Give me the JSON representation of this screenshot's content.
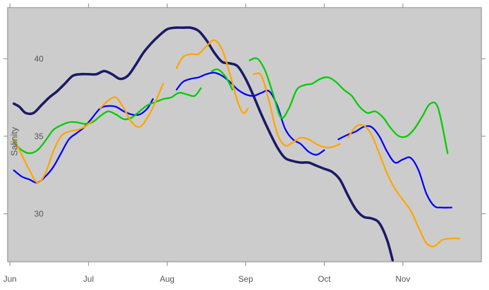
{
  "chart_data": {
    "type": "line",
    "title": "",
    "xlabel": "",
    "ylabel": "Salinity",
    "x_ticks": [
      "Jun",
      "Jul",
      "Aug",
      "Sep",
      "Oct",
      "Nov"
    ],
    "xlim": [
      -0.03,
      6.0
    ],
    "ylim": [
      26.9,
      43.3
    ],
    "y_ticks": [
      30,
      35,
      40
    ],
    "grid": false,
    "legend": "none",
    "background": "#cccccc",
    "series": [
      {
        "color": "#1a1a66",
        "segments": [
          [
            [
              0.05,
              37.1
            ],
            [
              0.12,
              36.9
            ],
            [
              0.2,
              36.5
            ],
            [
              0.3,
              36.5
            ],
            [
              0.4,
              37.0
            ],
            [
              0.5,
              37.5
            ],
            [
              0.6,
              37.9
            ],
            [
              0.7,
              38.4
            ],
            [
              0.8,
              38.9
            ],
            [
              0.9,
              39.0
            ],
            [
              1.0,
              39.0
            ],
            [
              1.1,
              39.0
            ],
            [
              1.2,
              39.2
            ],
            [
              1.3,
              39.0
            ],
            [
              1.4,
              38.7
            ],
            [
              1.5,
              38.9
            ],
            [
              1.6,
              39.6
            ],
            [
              1.7,
              40.4
            ],
            [
              1.8,
              41.0
            ],
            [
              1.9,
              41.5
            ],
            [
              2.0,
              41.9
            ],
            [
              2.1,
              42.0
            ],
            [
              2.2,
              42.0
            ],
            [
              2.3,
              42.0
            ],
            [
              2.4,
              41.8
            ],
            [
              2.5,
              41.2
            ],
            [
              2.6,
              40.4
            ],
            [
              2.7,
              39.8
            ],
            [
              2.8,
              39.7
            ],
            [
              2.9,
              39.5
            ],
            [
              3.0,
              38.7
            ],
            [
              3.1,
              37.6
            ],
            [
              3.2,
              36.4
            ],
            [
              3.3,
              35.3
            ],
            [
              3.4,
              34.3
            ],
            [
              3.5,
              33.6
            ],
            [
              3.6,
              33.4
            ],
            [
              3.7,
              33.3
            ],
            [
              3.8,
              33.3
            ],
            [
              3.9,
              33.1
            ],
            [
              4.0,
              32.9
            ],
            [
              4.1,
              32.7
            ],
            [
              4.2,
              32.2
            ],
            [
              4.3,
              31.2
            ],
            [
              4.4,
              30.3
            ],
            [
              4.5,
              29.8
            ],
            [
              4.6,
              29.7
            ],
            [
              4.7,
              29.4
            ],
            [
              4.8,
              28.3
            ],
            [
              4.87,
              27.0
            ]
          ]
        ]
      },
      {
        "color": "#0000ff",
        "segments": [
          [
            [
              0.05,
              32.8
            ],
            [
              0.15,
              32.4
            ],
            [
              0.25,
              32.2
            ],
            [
              0.35,
              32.0
            ],
            [
              0.45,
              32.4
            ],
            [
              0.55,
              33.0
            ],
            [
              0.65,
              33.9
            ],
            [
              0.75,
              34.8
            ],
            [
              0.85,
              35.2
            ],
            [
              0.95,
              35.6
            ],
            [
              1.05,
              36.2
            ],
            [
              1.15,
              36.8
            ],
            [
              1.25,
              36.95
            ],
            [
              1.35,
              36.9
            ],
            [
              1.45,
              36.6
            ],
            [
              1.55,
              36.4
            ],
            [
              1.65,
              36.4
            ],
            [
              1.75,
              36.8
            ],
            [
              1.82,
              37.4
            ]
          ],
          [
            [
              2.12,
              38.0
            ],
            [
              2.2,
              38.5
            ],
            [
              2.3,
              38.7
            ],
            [
              2.4,
              38.8
            ],
            [
              2.5,
              39.0
            ],
            [
              2.6,
              39.1
            ],
            [
              2.7,
              38.9
            ],
            [
              2.8,
              38.5
            ],
            [
              2.9,
              38.0
            ],
            [
              3.0,
              37.7
            ],
            [
              3.1,
              37.6
            ],
            [
              3.2,
              37.8
            ],
            [
              3.3,
              37.9
            ],
            [
              3.4,
              37.0
            ],
            [
              3.5,
              35.5
            ],
            [
              3.6,
              34.8
            ],
            [
              3.7,
              34.5
            ],
            [
              3.8,
              34.0
            ],
            [
              3.9,
              33.8
            ],
            [
              4.0,
              34.1
            ]
          ],
          [
            [
              4.18,
              34.8
            ],
            [
              4.3,
              35.1
            ],
            [
              4.4,
              35.3
            ],
            [
              4.5,
              35.6
            ],
            [
              4.6,
              35.6
            ],
            [
              4.7,
              35.0
            ],
            [
              4.8,
              34.0
            ],
            [
              4.9,
              33.3
            ],
            [
              5.0,
              33.5
            ],
            [
              5.1,
              33.6
            ],
            [
              5.2,
              32.8
            ],
            [
              5.3,
              31.3
            ],
            [
              5.4,
              30.5
            ],
            [
              5.5,
              30.4
            ],
            [
              5.62,
              30.4
            ]
          ]
        ]
      },
      {
        "color": "#00cc00",
        "segments": [
          [
            [
              0.05,
              34.6
            ],
            [
              0.15,
              34.1
            ],
            [
              0.25,
              33.9
            ],
            [
              0.35,
              34.1
            ],
            [
              0.45,
              34.7
            ],
            [
              0.55,
              35.4
            ],
            [
              0.65,
              35.7
            ],
            [
              0.75,
              35.9
            ],
            [
              0.85,
              35.9
            ],
            [
              0.95,
              35.8
            ],
            [
              1.05,
              35.9
            ],
            [
              1.15,
              36.3
            ],
            [
              1.25,
              36.6
            ],
            [
              1.35,
              36.4
            ],
            [
              1.45,
              36.1
            ],
            [
              1.55,
              36.2
            ],
            [
              1.65,
              36.6
            ],
            [
              1.75,
              37.0
            ],
            [
              1.85,
              37.2
            ],
            [
              1.95,
              37.4
            ],
            [
              2.05,
              37.5
            ],
            [
              2.15,
              37.8
            ],
            [
              2.25,
              37.7
            ],
            [
              2.35,
              37.6
            ],
            [
              2.43,
              38.1
            ]
          ],
          [
            [
              2.57,
              39.2
            ],
            [
              2.65,
              39.3
            ],
            [
              2.75,
              38.8
            ],
            [
              2.83,
              38.0
            ]
          ],
          [
            [
              3.05,
              39.9
            ],
            [
              3.15,
              40.0
            ],
            [
              3.25,
              39.2
            ],
            [
              3.35,
              37.7
            ],
            [
              3.45,
              36.2
            ],
            [
              3.55,
              36.8
            ],
            [
              3.65,
              38.0
            ],
            [
              3.75,
              38.3
            ],
            [
              3.85,
              38.4
            ],
            [
              3.95,
              38.7
            ],
            [
              4.05,
              38.8
            ],
            [
              4.15,
              38.5
            ],
            [
              4.25,
              38.0
            ],
            [
              4.35,
              37.6
            ],
            [
              4.45,
              36.9
            ],
            [
              4.55,
              36.5
            ],
            [
              4.65,
              36.6
            ],
            [
              4.75,
              36.2
            ],
            [
              4.85,
              35.5
            ],
            [
              4.95,
              35.0
            ],
            [
              5.05,
              35.0
            ],
            [
              5.15,
              35.5
            ],
            [
              5.25,
              36.3
            ],
            [
              5.35,
              37.1
            ],
            [
              5.45,
              36.8
            ],
            [
              5.57,
              33.9
            ]
          ]
        ]
      },
      {
        "color": "#ffa500",
        "segments": [
          [
            [
              0.05,
              34.8
            ],
            [
              0.15,
              33.8
            ],
            [
              0.25,
              32.8
            ],
            [
              0.35,
              32.0
            ],
            [
              0.45,
              32.6
            ],
            [
              0.55,
              34.0
            ],
            [
              0.65,
              35.0
            ],
            [
              0.75,
              35.3
            ],
            [
              0.85,
              35.4
            ],
            [
              0.95,
              35.6
            ],
            [
              1.05,
              36.0
            ]
          ],
          [
            [
              1.15,
              36.8
            ],
            [
              1.25,
              37.3
            ],
            [
              1.35,
              37.5
            ],
            [
              1.45,
              36.8
            ],
            [
              1.55,
              35.9
            ],
            [
              1.65,
              35.6
            ],
            [
              1.75,
              36.2
            ],
            [
              1.85,
              37.2
            ],
            [
              1.95,
              38.4
            ]
          ],
          [
            [
              2.12,
              39.4
            ],
            [
              2.2,
              40.1
            ],
            [
              2.3,
              40.3
            ],
            [
              2.4,
              40.3
            ],
            [
              2.5,
              40.8
            ],
            [
              2.6,
              41.2
            ],
            [
              2.7,
              40.6
            ],
            [
              2.8,
              39.0
            ],
            [
              2.9,
              37.2
            ],
            [
              2.97,
              36.5
            ],
            [
              3.03,
              36.8
            ]
          ],
          [
            [
              3.1,
              39.0
            ],
            [
              3.2,
              38.9
            ],
            [
              3.3,
              37.2
            ],
            [
              3.4,
              35.2
            ],
            [
              3.5,
              34.4
            ],
            [
              3.6,
              34.6
            ],
            [
              3.7,
              34.9
            ],
            [
              3.8,
              34.8
            ],
            [
              3.9,
              34.5
            ],
            [
              4.0,
              34.3
            ],
            [
              4.1,
              34.3
            ],
            [
              4.2,
              34.5
            ]
          ],
          [
            [
              4.3,
              34.9
            ],
            [
              4.4,
              35.6
            ],
            [
              4.5,
              35.7
            ],
            [
              4.6,
              35.1
            ],
            [
              4.7,
              33.9
            ],
            [
              4.8,
              32.6
            ],
            [
              4.9,
              31.6
            ],
            [
              5.0,
              30.9
            ],
            [
              5.1,
              30.2
            ],
            [
              5.2,
              29.1
            ],
            [
              5.3,
              28.1
            ],
            [
              5.4,
              27.9
            ],
            [
              5.5,
              28.3
            ],
            [
              5.6,
              28.4
            ],
            [
              5.72,
              28.4
            ]
          ]
        ]
      }
    ]
  }
}
